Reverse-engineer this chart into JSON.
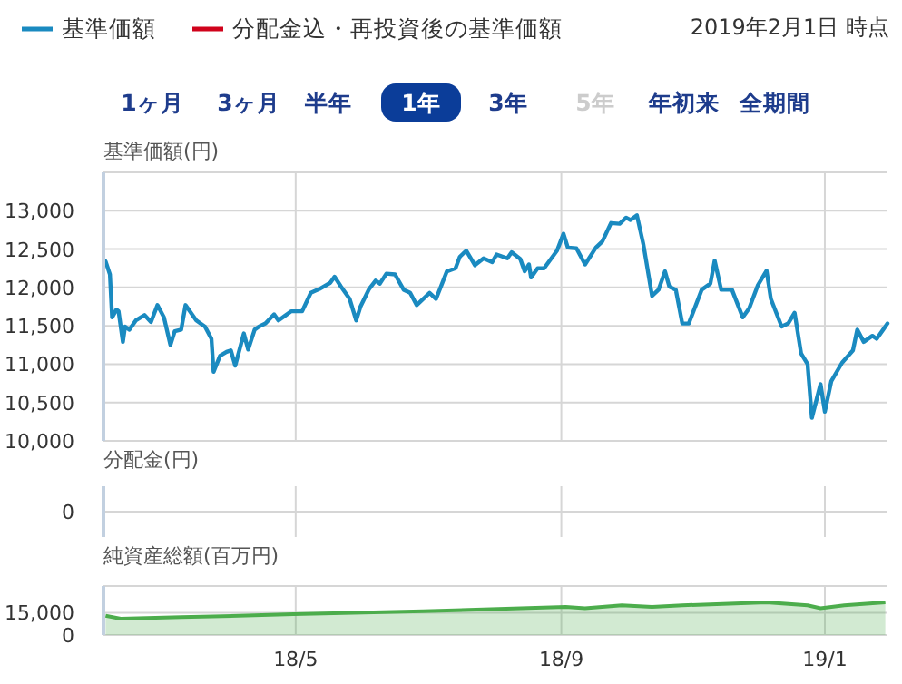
{
  "chart_data": [
    {
      "type": "line",
      "ylabel": "基準価額(円)",
      "legend": "top left",
      "grid": true,
      "tick_labels": "y",
      "line_style": "solid",
      "annotations": [
        "2019年2月1日 時点",
        "1ヶ月",
        "3ヶ月",
        "半年",
        "1年",
        "3年",
        "5年",
        "年初来",
        "全期間"
      ],
      "xlim": [
        "2018-02-01",
        "2019-01-30"
      ],
      "xticks": [
        {
          "value": "2018-05-01",
          "label": null
        },
        {
          "value": "2018-09-01",
          "label": null
        },
        {
          "value": "2019-01-01",
          "label": null
        }
      ],
      "ylim": [
        10000,
        13500
      ],
      "yticks": [
        {
          "value": 10000,
          "label": "10,000"
        },
        {
          "value": 10500,
          "label": "10,500"
        },
        {
          "value": 11000,
          "label": "11,000"
        },
        {
          "value": 11500,
          "label": "11,500"
        },
        {
          "value": 12000,
          "label": "12,000"
        },
        {
          "value": 12500,
          "label": "12,500"
        },
        {
          "value": 13000,
          "label": "13,000"
        },
        {
          "value": 13500,
          "label": null
        }
      ],
      "series": [
        {
          "name": "基準価額",
          "color": "#1a8ac0",
          "x": [
            "2018-02-02",
            "2018-02-04",
            "2018-02-05",
            "2018-02-07",
            "2018-02-08",
            "2018-02-10",
            "2018-02-11",
            "2018-02-13",
            "2018-02-16",
            "2018-02-20",
            "2018-02-23",
            "2018-02-26",
            "2018-03-01",
            "2018-03-04",
            "2018-03-06",
            "2018-03-09",
            "2018-03-11",
            "2018-03-16",
            "2018-03-20",
            "2018-03-23",
            "2018-03-24",
            "2018-03-27",
            "2018-03-30",
            "2018-04-01",
            "2018-04-03",
            "2018-04-07",
            "2018-04-09",
            "2018-04-12",
            "2018-04-14",
            "2018-04-17",
            "2018-04-21",
            "2018-04-23",
            "2018-04-26",
            "2018-04-29",
            "2018-05-04",
            "2018-05-08",
            "2018-05-12",
            "2018-05-17",
            "2018-05-19",
            "2018-05-22",
            "2018-05-26",
            "2018-05-29",
            "2018-05-31",
            "2018-06-04",
            "2018-06-07",
            "2018-06-09",
            "2018-06-12",
            "2018-06-16",
            "2018-06-20",
            "2018-06-23",
            "2018-06-26",
            "2018-06-29",
            "2018-07-02",
            "2018-07-05",
            "2018-07-10",
            "2018-07-14",
            "2018-07-16",
            "2018-07-19",
            "2018-07-23",
            "2018-07-27",
            "2018-07-31",
            "2018-08-02",
            "2018-08-07",
            "2018-08-09",
            "2018-08-13",
            "2018-08-15",
            "2018-08-17",
            "2018-08-18",
            "2018-08-21",
            "2018-08-24",
            "2018-08-30",
            "2018-09-02",
            "2018-09-04",
            "2018-09-08",
            "2018-09-12",
            "2018-09-17",
            "2018-09-20",
            "2018-09-24",
            "2018-09-28",
            "2018-10-01",
            "2018-10-03",
            "2018-10-06",
            "2018-10-09",
            "2018-10-13",
            "2018-10-16",
            "2018-10-19",
            "2018-10-21",
            "2018-10-24",
            "2018-10-27",
            "2018-10-30",
            "2018-11-05",
            "2018-11-09",
            "2018-11-11",
            "2018-11-14",
            "2018-11-19",
            "2018-11-24",
            "2018-11-27",
            "2018-12-01",
            "2018-12-05",
            "2018-12-07",
            "2018-12-12",
            "2018-12-15",
            "2018-12-18",
            "2018-12-21",
            "2018-12-24",
            "2018-12-26",
            "2018-12-30",
            "2019-01-01",
            "2019-01-04",
            "2019-01-09",
            "2019-01-14",
            "2019-01-16",
            "2019-01-19",
            "2019-01-23",
            "2019-01-25",
            "2019-01-28",
            "2019-01-30"
          ],
          "values": [
            12340,
            12170,
            11610,
            11710,
            11690,
            11290,
            11490,
            11450,
            11570,
            11640,
            11550,
            11770,
            11610,
            11250,
            11430,
            11450,
            11770,
            11570,
            11490,
            11330,
            10900,
            11110,
            11160,
            11180,
            10980,
            11400,
            11190,
            11450,
            11490,
            11530,
            11650,
            11570,
            11630,
            11690,
            11690,
            11930,
            11980,
            12060,
            12140,
            12010,
            11850,
            11570,
            11750,
            11980,
            12090,
            12050,
            12180,
            12170,
            11970,
            11930,
            11770,
            11850,
            11930,
            11850,
            12210,
            12250,
            12400,
            12480,
            12290,
            12380,
            12330,
            12430,
            12380,
            12460,
            12370,
            12210,
            12300,
            12130,
            12250,
            12250,
            12480,
            12700,
            12520,
            12510,
            12300,
            12520,
            12600,
            12840,
            12830,
            12910,
            12880,
            12940,
            12560,
            11890,
            11970,
            12210,
            12010,
            11970,
            11530,
            11530,
            11970,
            12050,
            12350,
            11970,
            11970,
            11610,
            11730,
            12030,
            12220,
            11850,
            11490,
            11530,
            11670,
            11140,
            11000,
            10300,
            10740,
            10380,
            10780,
            11020,
            11180,
            11450,
            11290,
            11370,
            11330,
            11450,
            11530
          ]
        },
        {
          "name": "分配金込・再投資後の基準価額",
          "color": "#d0021b",
          "values": [
            null,
            null
          ]
        }
      ]
    },
    {
      "type": "other",
      "ylabel": "分配金(円)",
      "annotations": [
        "0"
      ]
    },
    {
      "type": "area",
      "ylabel": "純資産総額(百万円)",
      "grid": true,
      "xlim": [
        "2018-02-01",
        "2019-01-30"
      ],
      "xticks": [
        {
          "value": "2018-05-01",
          "label": "18/5"
        },
        {
          "value": "2018-09-01",
          "label": "18/9"
        },
        {
          "value": "2019-01-01",
          "label": "19/1"
        }
      ],
      "ylim": [
        0,
        33000
      ],
      "yticks": [
        0,
        {
          "value": 15000,
          "label": "15,000"
        }
      ],
      "series": [
        {
          "color": "#4cad4c",
          "x": [
            "2018-02-02",
            "2018-02-09",
            "2018-03-09",
            "2018-04-30",
            "2018-06-29",
            "2018-09-03",
            "2018-09-12",
            "2018-09-29",
            "2018-10-13",
            "2018-10-27",
            "2018-12-05",
            "2018-12-24",
            "2018-12-30",
            "2019-01-10",
            "2019-01-29"
          ],
          "values": [
            13000,
            11000,
            12000,
            14000,
            16000,
            19000,
            18000,
            20000,
            19000,
            20000,
            22000,
            20000,
            18000,
            20000,
            22000
          ]
        }
      ]
    }
  ]
}
